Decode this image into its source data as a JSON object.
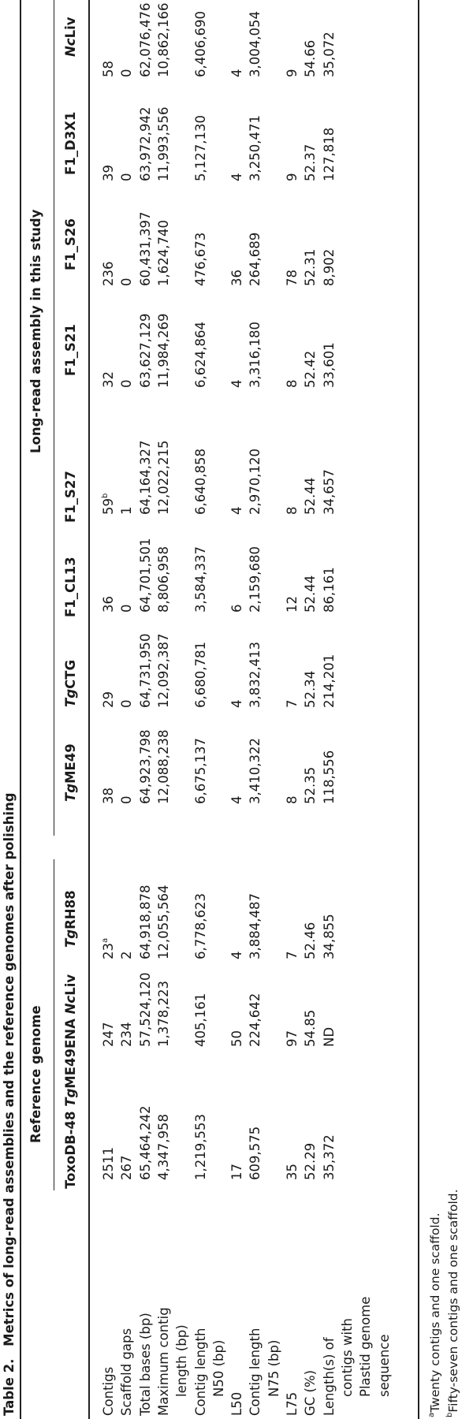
{
  "table": {
    "title_label": "Table 2.",
    "title_text": "Metrics of long-read assemblies and the reference genomes after polishing",
    "groups": [
      "Reference genome",
      "Long-read assembly in this study"
    ],
    "columns": [
      {
        "prefix": "ToxoDB-48 ",
        "italic": "Tg",
        "suffix": "ME49"
      },
      {
        "prefix": "ENA ",
        "italic": "Nc",
        "suffix": "Liv"
      },
      {
        "prefix": "",
        "italic": "Tg",
        "suffix": "RH88"
      },
      {
        "prefix": "",
        "italic": "Tg",
        "suffix": "ME49"
      },
      {
        "prefix": "",
        "italic": "Tg",
        "suffix": "CTG"
      },
      {
        "prefix": "F1_CL13",
        "italic": "",
        "suffix": ""
      },
      {
        "prefix": "F1_S27",
        "italic": "",
        "suffix": ""
      },
      {
        "prefix": "F1_S21",
        "italic": "",
        "suffix": ""
      },
      {
        "prefix": "F1_S26",
        "italic": "",
        "suffix": ""
      },
      {
        "prefix": "F1_D3X1",
        "italic": "",
        "suffix": ""
      },
      {
        "prefix": "",
        "italic": "Nc",
        "suffix": "Liv"
      }
    ],
    "rows": [
      {
        "label": [
          "Contigs"
        ],
        "values": [
          "2511",
          "247",
          "23",
          "38",
          "29",
          "36",
          "59",
          "32",
          "236",
          "39",
          "58"
        ],
        "notes": {
          "2": "a",
          "6": "b"
        }
      },
      {
        "label": [
          "Scaffold gaps"
        ],
        "values": [
          "267",
          "234",
          "2",
          "0",
          "0",
          "0",
          "1",
          "0",
          "0",
          "0",
          "0"
        ]
      },
      {
        "label": [
          "Total bases (bp)"
        ],
        "values": [
          "65,464,242",
          "57,524,120",
          "64,918,878",
          "64,923,798",
          "64,731,950",
          "64,701,501",
          "64,164,327",
          "63,627,129",
          "60,431,397",
          "63,972,942",
          "62,076,476"
        ]
      },
      {
        "label": [
          "Maximum contig",
          "length (bp)"
        ],
        "values": [
          "4,347,958",
          "1,378,223",
          "12,055,564",
          "12,088,238",
          "12,092,387",
          "8,806,958",
          "12,022,215",
          "11,984,269",
          "1,624,740",
          "11,993,556",
          "10,862,166"
        ]
      },
      {
        "label": [
          "Contig length",
          "N50 (bp)"
        ],
        "values": [
          "1,219,553",
          "405,161",
          "6,778,623",
          "6,675,137",
          "6,680,781",
          "3,584,337",
          "6,640,858",
          "6,624,864",
          "476,673",
          "5,127,130",
          "6,406,690"
        ]
      },
      {
        "label": [
          "L50"
        ],
        "values": [
          "17",
          "50",
          "4",
          "4",
          "4",
          "6",
          "4",
          "4",
          "36",
          "4",
          "4"
        ]
      },
      {
        "label": [
          "Contig length",
          "N75 (bp)"
        ],
        "values": [
          "609,575",
          "224,642",
          "3,884,487",
          "3,410,322",
          "3,832,413",
          "2,159,680",
          "2,970,120",
          "3,316,180",
          "264,689",
          "3,250,471",
          "3,004,054"
        ]
      },
      {
        "label": [
          "L75"
        ],
        "values": [
          "35",
          "97",
          "7",
          "8",
          "7",
          "12",
          "8",
          "8",
          "78",
          "9",
          "9"
        ]
      },
      {
        "label": [
          "GC (%)"
        ],
        "values": [
          "52.29",
          "54.85",
          "52.46",
          "52.35",
          "52.34",
          "52.44",
          "52.44",
          "52.42",
          "52.31",
          "52.37",
          "54.66"
        ]
      },
      {
        "label": [
          "Length(s) of",
          "contigs with",
          "Plastid genome",
          "sequence"
        ],
        "values": [
          "35,372",
          "ND",
          "34,855",
          "118,556",
          "214,201",
          "86,161",
          "34,657",
          "33,601",
          "8,902",
          "127,818",
          "35,072"
        ]
      }
    ],
    "footnotes": [
      {
        "mark": "a",
        "text": "Twenty contigs and one scaffold."
      },
      {
        "mark": "b",
        "text": "Fifty-seven contigs and one scaffold."
      }
    ]
  }
}
